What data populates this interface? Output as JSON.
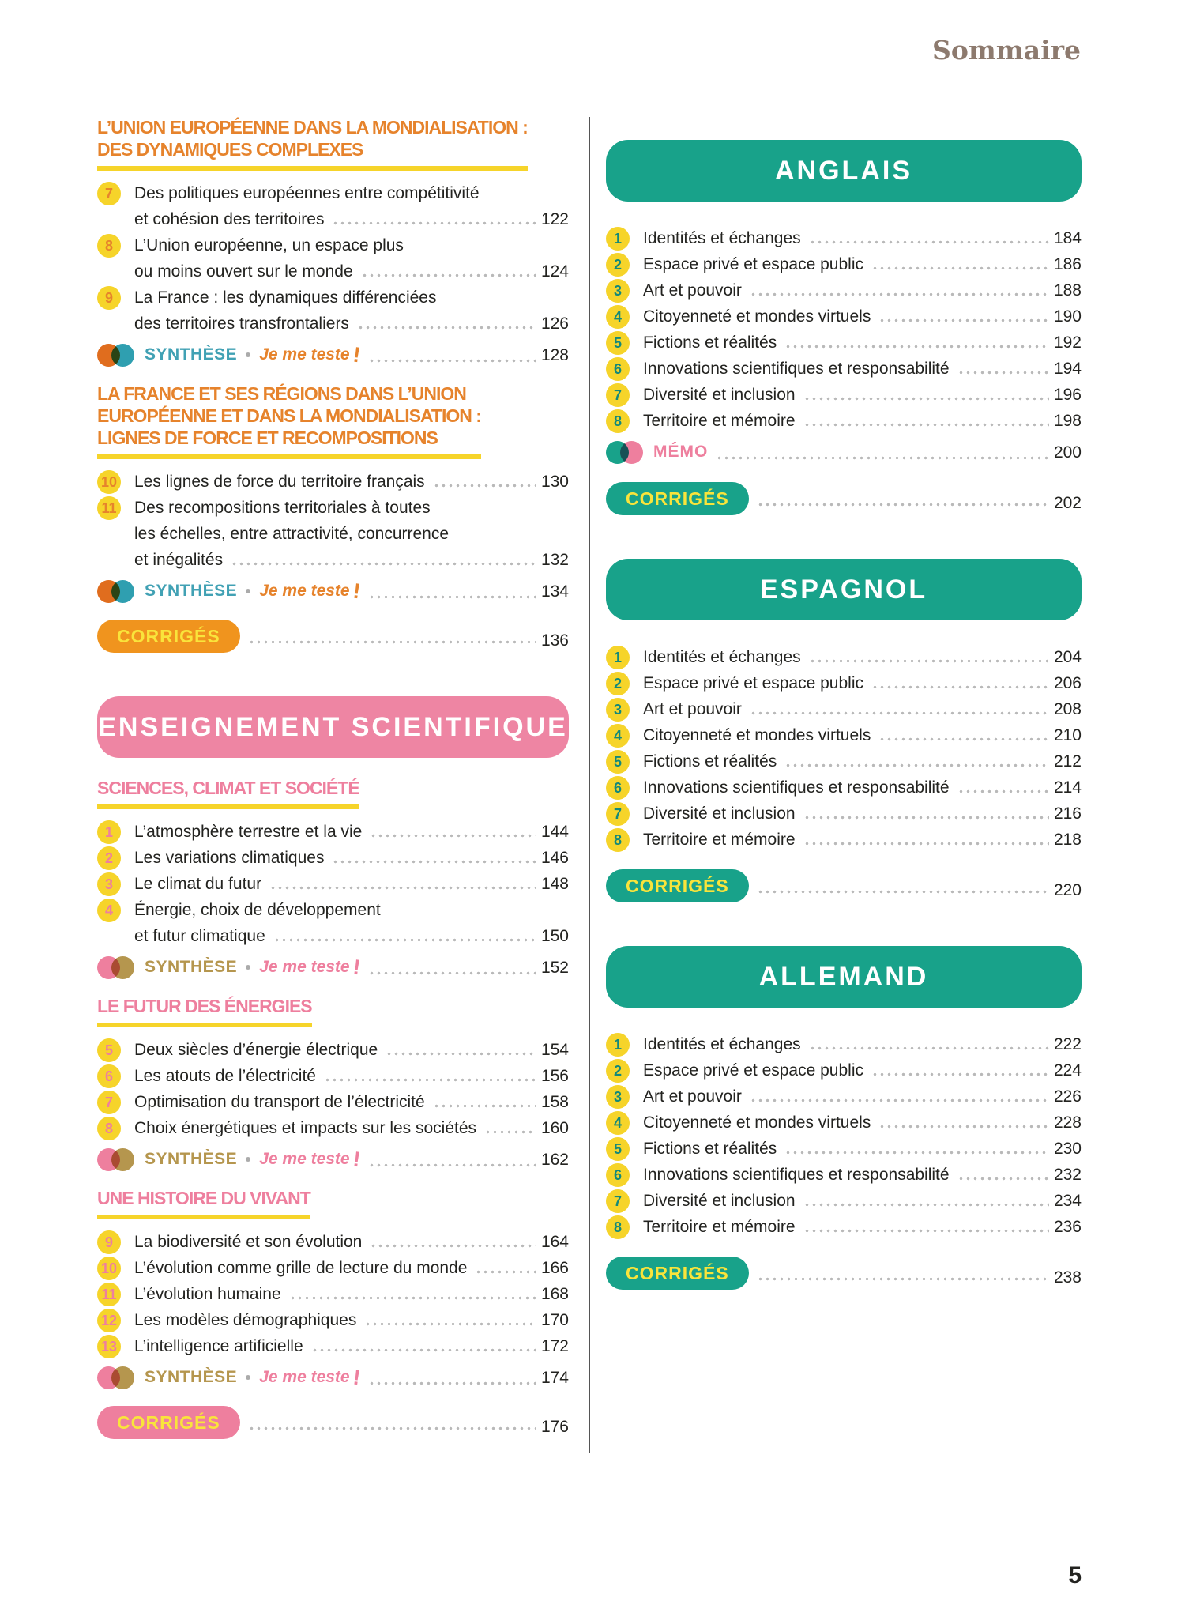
{
  "page": {
    "title": "Sommaire",
    "number": "5"
  },
  "labels": {
    "synthese": "SYNTHÈSE",
    "je_me_teste": "Je me teste",
    "exclamation": "!",
    "memo": "MÉMO",
    "corriges": "CORRIGÉS"
  },
  "colors": {
    "orange": "#e6832c",
    "yellow": "#f6d42a",
    "orange-badge": "#f0941e",
    "pink": "#ee7f9e",
    "pink-banner": "#ee85a3",
    "teal": "#18a28a",
    "teal-dark": "#13897a",
    "blue-teal": "#41a1b4",
    "tan": "#b5964e",
    "venn-orange": "#e06d1e",
    "venn-blue": "#2f9fb0",
    "taupe": "#8d7a6e",
    "ink": "#232320",
    "dots": "#b9b9b9",
    "badge-text": "#f9e43b"
  },
  "left_column": [
    {
      "kind": "group",
      "theme": "geo",
      "heading_lines": [
        "L’UNION EUROPÉENNE DANS LA MONDIALISATION :",
        "DES DYNAMIQUES COMPLEXES"
      ],
      "items": [
        {
          "num": "7",
          "lines": [
            "Des politiques européennes entre compétitivité",
            "et cohésion des territoires"
          ],
          "page": "122"
        },
        {
          "num": "8",
          "lines": [
            "L’Union européenne, un espace plus",
            "ou moins ouvert sur le monde"
          ],
          "page": "124"
        },
        {
          "num": "9",
          "lines": [
            "La France : les dynamiques différenciées",
            "des territoires transfrontaliers"
          ],
          "page": "126"
        }
      ],
      "synthese_page": "128"
    },
    {
      "kind": "group",
      "theme": "geo",
      "heading_lines": [
        "LA FRANCE ET SES RÉGIONS DANS L’UNION",
        "EUROPÉENNE ET DANS LA MONDIALISATION :",
        "LIGNES DE FORCE ET RECOMPOSITIONS"
      ],
      "items": [
        {
          "num": "10",
          "lines": [
            "Les lignes de force du territoire français"
          ],
          "page": "130"
        },
        {
          "num": "11",
          "lines": [
            "Des recompositions territoriales à toutes",
            "les échelles, entre attractivité, concurrence",
            "et inégalités"
          ],
          "page": "132"
        }
      ],
      "synthese_page": "134"
    },
    {
      "kind": "corriges",
      "theme": "orange",
      "page": "136"
    },
    {
      "kind": "banner",
      "theme": "pink",
      "label": "ENSEIGNEMENT SCIENTIFIQUE"
    },
    {
      "kind": "group",
      "theme": "sci",
      "heading_lines": [
        "SCIENCES, CLIMAT ET SOCIÉTÉ"
      ],
      "items": [
        {
          "num": "1",
          "lines": [
            "L’atmosphère terrestre et la vie"
          ],
          "page": "144"
        },
        {
          "num": "2",
          "lines": [
            "Les variations climatiques"
          ],
          "page": "146"
        },
        {
          "num": "3",
          "lines": [
            "Le climat du futur"
          ],
          "page": "148"
        },
        {
          "num": "4",
          "lines": [
            "Énergie, choix de développement",
            "et futur climatique"
          ],
          "page": "150"
        }
      ],
      "synthese_page": "152"
    },
    {
      "kind": "group",
      "theme": "sci",
      "heading_lines": [
        "LE FUTUR DES ÉNERGIES"
      ],
      "items": [
        {
          "num": "5",
          "lines": [
            "Deux siècles d’énergie électrique"
          ],
          "page": "154"
        },
        {
          "num": "6",
          "lines": [
            "Les atouts de l’électricité"
          ],
          "page": "156"
        },
        {
          "num": "7",
          "lines": [
            "Optimisation du transport de l’électricité"
          ],
          "page": "158"
        },
        {
          "num": "8",
          "lines": [
            "Choix énergétiques et impacts sur les sociétés"
          ],
          "page": "160"
        }
      ],
      "synthese_page": "162"
    },
    {
      "kind": "group",
      "theme": "sci",
      "heading_lines": [
        "UNE HISTOIRE DU VIVANT"
      ],
      "items": [
        {
          "num": "9",
          "lines": [
            "La biodiversité et son évolution"
          ],
          "page": "164"
        },
        {
          "num": "10",
          "lines": [
            "L’évolution comme grille de lecture du monde"
          ],
          "page": "166"
        },
        {
          "num": "11",
          "lines": [
            "L’évolution humaine"
          ],
          "page": "168"
        },
        {
          "num": "12",
          "lines": [
            "Les modèles démographiques"
          ],
          "page": "170"
        },
        {
          "num": "13",
          "lines": [
            "L’intelligence artificielle"
          ],
          "page": "172"
        }
      ],
      "synthese_page": "174"
    },
    {
      "kind": "corriges",
      "theme": "pink",
      "page": "176"
    }
  ],
  "right_column": [
    {
      "kind": "banner",
      "theme": "teal",
      "label": "ANGLAIS"
    },
    {
      "kind": "group",
      "theme": "lang",
      "items": [
        {
          "num": "1",
          "lines": [
            "Identités et échanges"
          ],
          "page": "184"
        },
        {
          "num": "2",
          "lines": [
            "Espace privé et espace public"
          ],
          "page": "186"
        },
        {
          "num": "3",
          "lines": [
            "Art et pouvoir"
          ],
          "page": "188"
        },
        {
          "num": "4",
          "lines": [
            "Citoyenneté et mondes virtuels"
          ],
          "page": "190"
        },
        {
          "num": "5",
          "lines": [
            "Fictions et réalités"
          ],
          "page": "192"
        },
        {
          "num": "6",
          "lines": [
            "Innovations scientifiques et responsabilité"
          ],
          "page": "194"
        },
        {
          "num": "7",
          "lines": [
            "Diversité et inclusion"
          ],
          "page": "196"
        },
        {
          "num": "8",
          "lines": [
            "Territoire et mémoire"
          ],
          "page": "198"
        }
      ],
      "memo_page": "200"
    },
    {
      "kind": "corriges",
      "theme": "teal",
      "page": "202"
    },
    {
      "kind": "banner",
      "theme": "teal",
      "label": "ESPAGNOL"
    },
    {
      "kind": "group",
      "theme": "lang",
      "items": [
        {
          "num": "1",
          "lines": [
            "Identités et échanges"
          ],
          "page": "204"
        },
        {
          "num": "2",
          "lines": [
            "Espace privé et espace public"
          ],
          "page": "206"
        },
        {
          "num": "3",
          "lines": [
            "Art et pouvoir"
          ],
          "page": "208"
        },
        {
          "num": "4",
          "lines": [
            "Citoyenneté et mondes virtuels"
          ],
          "page": "210"
        },
        {
          "num": "5",
          "lines": [
            "Fictions et réalités"
          ],
          "page": "212"
        },
        {
          "num": "6",
          "lines": [
            "Innovations scientifiques et responsabilité"
          ],
          "page": "214"
        },
        {
          "num": "7",
          "lines": [
            "Diversité et inclusion"
          ],
          "page": "216"
        },
        {
          "num": "8",
          "lines": [
            "Territoire et mémoire"
          ],
          "page": "218"
        }
      ]
    },
    {
      "kind": "corriges",
      "theme": "teal",
      "page": "220"
    },
    {
      "kind": "banner",
      "theme": "teal",
      "label": "ALLEMAND"
    },
    {
      "kind": "group",
      "theme": "lang",
      "items": [
        {
          "num": "1",
          "lines": [
            "Identités et échanges"
          ],
          "page": "222"
        },
        {
          "num": "2",
          "lines": [
            "Espace privé et espace public"
          ],
          "page": "224"
        },
        {
          "num": "3",
          "lines": [
            "Art et pouvoir"
          ],
          "page": "226"
        },
        {
          "num": "4",
          "lines": [
            "Citoyenneté et mondes virtuels"
          ],
          "page": "228"
        },
        {
          "num": "5",
          "lines": [
            "Fictions et réalités"
          ],
          "page": "230"
        },
        {
          "num": "6",
          "lines": [
            "Innovations scientifiques et responsabilité"
          ],
          "page": "232"
        },
        {
          "num": "7",
          "lines": [
            "Diversité et inclusion"
          ],
          "page": "234"
        },
        {
          "num": "8",
          "lines": [
            "Territoire et mémoire"
          ],
          "page": "236"
        }
      ]
    },
    {
      "kind": "corriges",
      "theme": "teal",
      "page": "238"
    }
  ]
}
